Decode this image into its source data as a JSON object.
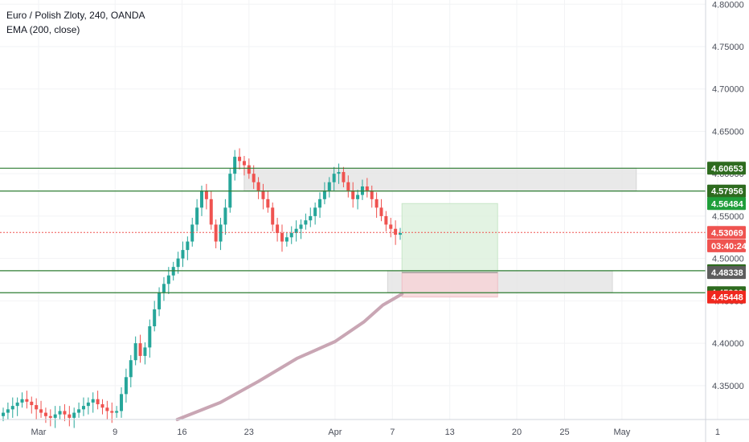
{
  "legend": {
    "symbol": "Euro / Polish Zloty, 240, OANDA",
    "indicator": "EMA (200, close)"
  },
  "colors": {
    "up": "#26a69a",
    "down": "#ef5350",
    "level_line": "#2e7d32",
    "ema": "#c9a6b4",
    "current_price": "#ef5350",
    "zone_gray": "#e6e6e6",
    "target_zone": "#dff1df",
    "stop_zone": "#f6d5d8"
  },
  "chart_data": {
    "type": "candlestick",
    "y_range": [
      4.31,
      4.805
    ],
    "y_ticks": [
      "4.80000",
      "4.75000",
      "4.70000",
      "4.65000",
      "4.60000",
      "4.55000",
      "4.50000",
      "4.45000",
      "4.40000",
      "4.35000"
    ],
    "x_ticks": [
      {
        "label": "Mar",
        "day": 0
      },
      {
        "label": "9",
        "day": 8
      },
      {
        "label": "16",
        "day": 15
      },
      {
        "label": "23",
        "day": 22
      },
      {
        "label": "Apr",
        "day": 31
      },
      {
        "label": "7",
        "day": 37
      },
      {
        "label": "13",
        "day": 43
      },
      {
        "label": "20",
        "day": 50
      },
      {
        "label": "25",
        "day": 55
      },
      {
        "label": "May",
        "day": 61
      },
      {
        "label": "1",
        "day": 71
      }
    ],
    "price_labels": [
      {
        "text": "4.60653",
        "value": 4.60653,
        "style": "level"
      },
      {
        "text": "4.57956",
        "value": 4.57956,
        "style": "level"
      },
      {
        "text": "4.56484",
        "value": 4.56484,
        "style": "target"
      },
      {
        "text": "4.53069",
        "value": 4.53069,
        "style": "current"
      },
      {
        "text": "03:40:24",
        "value": 4.515,
        "style": "countdown"
      },
      {
        "text": "4.48552",
        "value": 4.48552,
        "style": "level"
      },
      {
        "text": "4.48338",
        "value": 4.48338,
        "style": "entry"
      },
      {
        "text": "4.45960",
        "value": 4.4596,
        "style": "level"
      },
      {
        "text": "4.45448",
        "value": 4.45448,
        "style": "stop"
      }
    ],
    "horizontal_levels": [
      4.60653,
      4.57956,
      4.48552,
      4.4596
    ],
    "current_price": 4.53069,
    "zones": [
      {
        "kind": "gray",
        "day_from": 21.5,
        "day_to": 62.5,
        "high": 4.60653,
        "low": 4.57956
      },
      {
        "kind": "gray",
        "day_from": 36.5,
        "day_to": 60.0,
        "high": 4.48552,
        "low": 4.4596
      },
      {
        "kind": "target",
        "day_from": 38.0,
        "day_to": 48.0,
        "high": 4.56484,
        "low": 4.48338
      },
      {
        "kind": "stop",
        "day_from": 38.0,
        "day_to": 48.0,
        "high": 4.48338,
        "low": 4.45448
      }
    ],
    "closes": [
      4.318,
      4.322,
      4.326,
      4.33,
      4.334,
      4.331,
      4.327,
      4.322,
      4.318,
      4.314,
      4.312,
      4.316,
      4.32,
      4.316,
      4.312,
      4.318,
      4.322,
      4.326,
      4.33,
      4.334,
      4.328,
      4.324,
      4.32,
      4.318,
      4.32,
      4.34,
      4.36,
      4.38,
      4.4,
      4.385,
      4.395,
      4.42,
      4.44,
      4.46,
      4.47,
      4.48,
      4.49,
      4.5,
      4.51,
      4.52,
      4.54,
      4.56,
      4.58,
      4.57,
      4.54,
      4.52,
      4.54,
      4.56,
      4.6,
      4.62,
      4.615,
      4.61,
      4.6,
      4.59,
      4.58,
      4.57,
      4.56,
      4.54,
      4.53,
      4.52,
      4.525,
      4.53,
      4.535,
      4.54,
      4.545,
      4.55,
      4.56,
      4.57,
      4.58,
      4.59,
      4.6,
      4.602,
      4.59,
      4.58,
      4.57,
      4.575,
      4.585,
      4.58,
      4.57,
      4.56,
      4.55,
      4.54,
      4.535,
      4.528,
      4.53
    ],
    "ema_points": [
      {
        "day": 14.5,
        "value": 4.31
      },
      {
        "day": 19.0,
        "value": 4.33
      },
      {
        "day": 23.0,
        "value": 4.355
      },
      {
        "day": 27.0,
        "value": 4.382
      },
      {
        "day": 31.0,
        "value": 4.402
      },
      {
        "day": 34.0,
        "value": 4.425
      },
      {
        "day": 36.0,
        "value": 4.445
      },
      {
        "day": 38.0,
        "value": 4.458
      }
    ]
  }
}
